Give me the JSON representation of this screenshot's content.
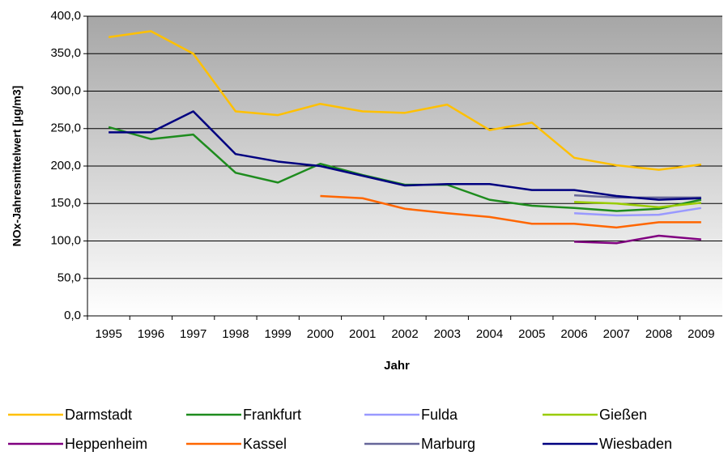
{
  "chart_data": {
    "type": "line",
    "x_label": "Jahr",
    "y_label": "NOx-Jahresmittelwert [µg/m3]",
    "categories": [
      "1995",
      "1996",
      "1997",
      "1998",
      "1999",
      "2000",
      "2001",
      "2002",
      "2003",
      "2004",
      "2005",
      "2006",
      "2007",
      "2008",
      "2009"
    ],
    "ylim": [
      0,
      400
    ],
    "yticks": [
      {
        "value": 0,
        "label": "0,0"
      },
      {
        "value": 50,
        "label": "50,0"
      },
      {
        "value": 100,
        "label": "100,0"
      },
      {
        "value": 150,
        "label": "150,0"
      },
      {
        "value": 200,
        "label": "200,0"
      },
      {
        "value": 250,
        "label": "250,0"
      },
      {
        "value": 300,
        "label": "300,0"
      },
      {
        "value": 350,
        "label": "350,0"
      },
      {
        "value": 400,
        "label": "400,0"
      }
    ],
    "grid": true,
    "legend": "bottom",
    "series": [
      {
        "name": "Darmstadt",
        "color": "#ffc000",
        "values": [
          372,
          380,
          350,
          273,
          268,
          283,
          273,
          271,
          282,
          248,
          258,
          211,
          201,
          195,
          202
        ]
      },
      {
        "name": "Frankfurt",
        "color": "#1e8c1e",
        "values": [
          252,
          236,
          242,
          191,
          178,
          203,
          188,
          175,
          175,
          155,
          147,
          144,
          140,
          143,
          155
        ]
      },
      {
        "name": "Fulda",
        "color": "#9999ff",
        "values": [
          null,
          null,
          null,
          null,
          null,
          null,
          null,
          null,
          null,
          null,
          null,
          137,
          134,
          135,
          144
        ]
      },
      {
        "name": "Gießen",
        "color": "#99cc00",
        "values": [
          null,
          null,
          null,
          null,
          null,
          null,
          null,
          null,
          null,
          null,
          null,
          152,
          150,
          145,
          151
        ]
      },
      {
        "name": "Heppenheim",
        "color": "#800080",
        "values": [
          null,
          null,
          null,
          null,
          null,
          null,
          null,
          null,
          null,
          null,
          null,
          99,
          97,
          107,
          102
        ]
      },
      {
        "name": "Kassel",
        "color": "#ff6600",
        "values": [
          null,
          null,
          null,
          null,
          null,
          160,
          157,
          143,
          137,
          132,
          123,
          123,
          118,
          125,
          125
        ]
      },
      {
        "name": "Marburg",
        "color": "#666699",
        "values": [
          null,
          null,
          null,
          null,
          null,
          null,
          null,
          null,
          null,
          null,
          null,
          161,
          158,
          158,
          158
        ]
      },
      {
        "name": "Wiesbaden",
        "color": "#000080",
        "values": [
          245,
          245,
          273,
          216,
          206,
          200,
          187,
          174,
          176,
          176,
          168,
          168,
          160,
          155,
          157
        ]
      }
    ]
  }
}
